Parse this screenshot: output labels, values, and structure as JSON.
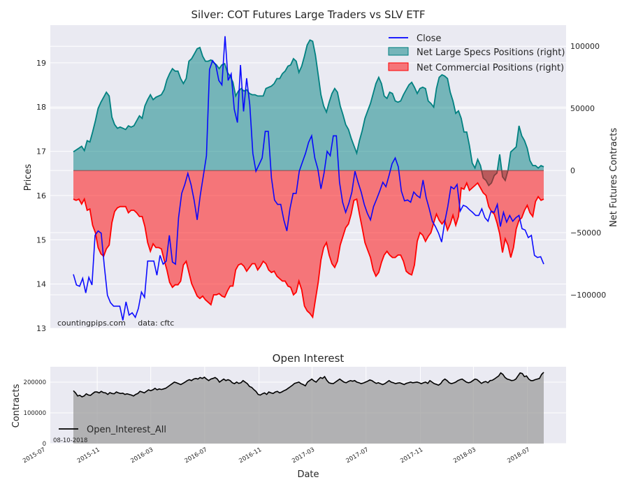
{
  "chart_data": [
    {
      "type": "line",
      "title": "Silver: COT Futures Large Traders vs SLV ETF",
      "ylabel": "Prices",
      "y2label": "Net Futures Contracts",
      "ylim": [
        13,
        19.85
      ],
      "y2lim": [
        -127000,
        117000
      ],
      "yticks": [
        13,
        14,
        15,
        16,
        17,
        18,
        19
      ],
      "y2ticks": [
        -100000,
        -50000,
        0,
        50000,
        100000
      ],
      "y2ticklabels": [
        "−100000",
        "−50000",
        "0",
        "50000",
        "100000"
      ],
      "grid": true,
      "legend": "top-right",
      "annotation": "countingpips.com     data: cftc",
      "series": [
        {
          "name": "Close",
          "axis": "left",
          "color": "#0000ff",
          "x": [
            "2015-09-08",
            "2015-09-15",
            "2015-09-22",
            "2015-09-29",
            "2015-10-06",
            "2015-10-13",
            "2015-10-20",
            "2015-10-27",
            "2015-11-03",
            "2015-11-10",
            "2015-11-17",
            "2015-11-24",
            "2015-12-01",
            "2015-12-08",
            "2015-12-15",
            "2015-12-22",
            "2015-12-29",
            "2016-01-05",
            "2016-01-12",
            "2016-01-19",
            "2016-01-26",
            "2016-02-02",
            "2016-02-09",
            "2016-02-16",
            "2016-02-23",
            "2016-03-01",
            "2016-03-08",
            "2016-03-15",
            "2016-03-22",
            "2016-03-29",
            "2016-04-05",
            "2016-04-12",
            "2016-04-19",
            "2016-04-26",
            "2016-05-03",
            "2016-05-10",
            "2016-05-17",
            "2016-05-24",
            "2016-05-31",
            "2016-06-07",
            "2016-06-14",
            "2016-06-21",
            "2016-06-28",
            "2016-07-05",
            "2016-07-12",
            "2016-07-19",
            "2016-07-26",
            "2016-08-02",
            "2016-08-09",
            "2016-08-16",
            "2016-08-23",
            "2016-08-30",
            "2016-09-06",
            "2016-09-13",
            "2016-09-20",
            "2016-09-27",
            "2016-10-04",
            "2016-10-11",
            "2016-10-18",
            "2016-10-25",
            "2016-11-01",
            "2016-11-08",
            "2016-11-15",
            "2016-11-22",
            "2016-11-29",
            "2016-12-06",
            "2016-12-13",
            "2016-12-20",
            "2016-12-27",
            "2017-01-03",
            "2017-01-10",
            "2017-01-17",
            "2017-01-24",
            "2017-01-31",
            "2017-02-07",
            "2017-02-14",
            "2017-02-21",
            "2017-02-28",
            "2017-03-07",
            "2017-03-14",
            "2017-03-21",
            "2017-03-28",
            "2017-04-04",
            "2017-04-11",
            "2017-04-18",
            "2017-04-25",
            "2017-05-02",
            "2017-05-09",
            "2017-05-16",
            "2017-05-23",
            "2017-05-30",
            "2017-06-06",
            "2017-06-13",
            "2017-06-20",
            "2017-06-27",
            "2017-07-04",
            "2017-07-11",
            "2017-07-18",
            "2017-07-25",
            "2017-08-01",
            "2017-08-08",
            "2017-08-15",
            "2017-08-22",
            "2017-08-29",
            "2017-09-05",
            "2017-09-12",
            "2017-09-19",
            "2017-09-26",
            "2017-10-03",
            "2017-10-10",
            "2017-10-17",
            "2017-10-24",
            "2017-10-31",
            "2017-11-07",
            "2017-11-14",
            "2017-11-21",
            "2017-11-28",
            "2017-12-05",
            "2017-12-12",
            "2017-12-19",
            "2017-12-26",
            "2018-01-02",
            "2018-01-09",
            "2018-01-16",
            "2018-01-23",
            "2018-01-30",
            "2018-02-06",
            "2018-02-13",
            "2018-02-20",
            "2018-02-27",
            "2018-03-06",
            "2018-03-13",
            "2018-03-20",
            "2018-03-27",
            "2018-04-03",
            "2018-04-10",
            "2018-04-17",
            "2018-04-24",
            "2018-05-01",
            "2018-05-08",
            "2018-05-15",
            "2018-05-22",
            "2018-05-29",
            "2018-06-05",
            "2018-06-12",
            "2018-06-19",
            "2018-06-26",
            "2018-07-03",
            "2018-07-10",
            "2018-07-17",
            "2018-07-24",
            "2018-07-31",
            "2018-08-07"
          ],
          "values": [
            14.22,
            13.98,
            13.95,
            14.13,
            13.8,
            14.15,
            13.98,
            15.1,
            15.2,
            15.15,
            14.4,
            13.75,
            13.58,
            13.5,
            13.5,
            13.5,
            13.18,
            13.6,
            13.3,
            13.35,
            13.25,
            13.45,
            13.82,
            13.7,
            14.52,
            14.52,
            14.52,
            14.2,
            14.65,
            14.45,
            14.52,
            15.1,
            14.5,
            14.45,
            15.5,
            16.05,
            16.25,
            16.5,
            16.25,
            15.9,
            15.45,
            16.0,
            16.45,
            16.9,
            18.85,
            19.05,
            18.95,
            18.6,
            18.5,
            19.6,
            18.6,
            18.75,
            17.95,
            17.65,
            18.95,
            17.9,
            18.65,
            18.05,
            16.95,
            16.55,
            16.7,
            16.85,
            17.45,
            17.45,
            16.4,
            15.9,
            15.8,
            15.8,
            15.45,
            15.2,
            15.7,
            16.05,
            16.05,
            16.55,
            16.75,
            16.95,
            17.2,
            17.35,
            16.85,
            16.6,
            16.15,
            16.5,
            17.0,
            16.9,
            17.35,
            17.35,
            16.3,
            15.85,
            15.62,
            15.82,
            16.08,
            16.55,
            16.3,
            16.08,
            15.8,
            15.6,
            15.45,
            15.75,
            15.92,
            16.1,
            16.3,
            16.2,
            16.45,
            16.72,
            16.85,
            16.65,
            16.1,
            15.88,
            15.9,
            15.85,
            16.08,
            16.0,
            15.95,
            16.35,
            15.95,
            15.7,
            15.42,
            15.3,
            15.15,
            14.95,
            15.4,
            15.75,
            16.2,
            16.15,
            16.25,
            15.65,
            15.78,
            15.75,
            15.68,
            15.62,
            15.55,
            15.55,
            15.7,
            15.5,
            15.42,
            15.65,
            15.62,
            15.8,
            15.3,
            15.62,
            15.4,
            15.55,
            15.42,
            15.5,
            15.55,
            15.25,
            15.22,
            15.05,
            15.1,
            14.65,
            14.6,
            14.62,
            14.45
          ]
        },
        {
          "name": "Net Large Specs Positions (right)",
          "axis": "right",
          "color": "#008080",
          "values": [
            15000,
            16500,
            18000,
            19500,
            16000,
            24000,
            23000,
            31000,
            40000,
            50000,
            55000,
            59000,
            63000,
            60000,
            43000,
            37000,
            34000,
            35000,
            34000,
            33000,
            36000,
            35000,
            36000,
            40000,
            44000,
            42000,
            52000,
            57000,
            61000,
            57000,
            59000,
            60000,
            61000,
            65000,
            73000,
            78000,
            82000,
            80000,
            80000,
            74000,
            70000,
            74000,
            88000,
            90000,
            94000,
            98000,
            99000,
            92000,
            88000,
            88000,
            89000,
            87000,
            85000,
            82000,
            85000,
            86000,
            79000,
            76000,
            71000,
            60000,
            64000,
            66000,
            64000,
            65000,
            62000,
            61000,
            61000,
            60000,
            60000,
            60000,
            66000,
            67000,
            68000,
            70000,
            74000,
            74000,
            78000,
            80000,
            84000,
            85000,
            90000,
            88000,
            79000,
            84000,
            92000,
            101000,
            105000,
            104000,
            93000,
            77000,
            61000,
            52000,
            47000,
            55000,
            62000,
            66000,
            63000,
            52000,
            45000,
            37000,
            33000,
            26000,
            20000,
            14000,
            24000,
            32000,
            42000,
            48000,
            54000,
            62000,
            70000,
            75000,
            70000,
            60000,
            58000,
            63000,
            62000,
            56000,
            55000,
            56000,
            61000,
            65000,
            69000,
            71000,
            67000,
            62000,
            66000,
            67000,
            66000,
            56000,
            54000,
            51000,
            66000,
            75000,
            77000,
            76000,
            74000,
            63000,
            56000,
            46000,
            48000,
            42000,
            31000,
            31000,
            20000,
            6000,
            2000,
            9000,
            4000,
            -6000,
            -8000,
            -12000,
            -10000,
            -4000,
            -2000,
            13000,
            -5000,
            -8000,
            0,
            15000,
            17000,
            19000,
            36000,
            28000,
            24000,
            18000,
            8000,
            4000,
            4000,
            2000,
            4000,
            3000
          ]
        },
        {
          "name": "Net Commercial Positions (right)",
          "axis": "right",
          "color": "#ff0000",
          "values": [
            -23000,
            -24000,
            -23000,
            -27000,
            -23000,
            -32000,
            -31000,
            -44000,
            -50000,
            -62000,
            -67000,
            -69000,
            -63000,
            -60000,
            -42000,
            -33000,
            -30000,
            -29000,
            -29000,
            -29000,
            -34000,
            -32000,
            -32000,
            -34000,
            -37000,
            -37000,
            -45000,
            -58000,
            -65000,
            -59000,
            -62000,
            -62000,
            -63000,
            -72000,
            -80000,
            -90000,
            -94000,
            -92000,
            -92000,
            -89000,
            -76000,
            -73000,
            -82000,
            -91000,
            -96000,
            -101000,
            -103000,
            -101000,
            -104000,
            -106000,
            -108000,
            -100000,
            -100000,
            -99000,
            -101000,
            -102000,
            -97000,
            -93000,
            -93000,
            -80000,
            -76000,
            -75000,
            -77000,
            -81000,
            -78000,
            -75000,
            -75000,
            -80000,
            -77000,
            -73000,
            -75000,
            -80000,
            -82000,
            -81000,
            -85000,
            -87000,
            -89000,
            -89000,
            -93000,
            -94000,
            -100000,
            -98000,
            -89000,
            -96000,
            -109000,
            -113000,
            -115000,
            -118000,
            -104000,
            -90000,
            -72000,
            -62000,
            -58000,
            -68000,
            -75000,
            -78000,
            -73000,
            -60000,
            -53000,
            -46000,
            -43000,
            -35000,
            -24000,
            -23000,
            -35000,
            -46000,
            -58000,
            -64000,
            -70000,
            -80000,
            -85000,
            -82000,
            -74000,
            -68000,
            -65000,
            -68000,
            -70000,
            -70000,
            -68000,
            -68000,
            -73000,
            -81000,
            -83000,
            -84000,
            -76000,
            -57000,
            -50000,
            -52000,
            -57000,
            -53000,
            -50000,
            -42000,
            -35000,
            -40000,
            -43000,
            -40000,
            -48000,
            -43000,
            -36000,
            -44000,
            -37000,
            -14000,
            -15000,
            -10000,
            -16000,
            -14000,
            -12000,
            -10000,
            -14000,
            -18000,
            -20000,
            -29000,
            -33000,
            -35000,
            -42000,
            -51000,
            -66000,
            -55000,
            -60000,
            -70000,
            -62000,
            -47000,
            -40000,
            -38000,
            -32000,
            -28000,
            -34000,
            -37000,
            -25000,
            -21000,
            -24000,
            -23000
          ]
        }
      ]
    },
    {
      "type": "area",
      "title": "Open Interest",
      "xlabel": "Date",
      "ylabel": "Contracts",
      "ylim": [
        0,
        250000
      ],
      "yticks": [
        0,
        100000,
        200000
      ],
      "xticklabels": [
        "2015-07",
        "2015-11",
        "2016-03",
        "2016-07",
        "2016-11",
        "2017-03",
        "2017-07",
        "2017-11",
        "2018-03",
        "2018-07"
      ],
      "legend": "bottom-left",
      "annotation": "08-10-2018",
      "series": [
        {
          "name": "Open_Interest_All",
          "color": "#000000",
          "values": [
            172000,
            165000,
            155000,
            157000,
            152000,
            155000,
            162000,
            158000,
            157000,
            163000,
            168000,
            168000,
            165000,
            170000,
            166000,
            165000,
            160000,
            166000,
            163000,
            162000,
            168000,
            165000,
            163000,
            164000,
            160000,
            162000,
            160000,
            158000,
            155000,
            160000,
            163000,
            170000,
            168000,
            165000,
            170000,
            175000,
            172000,
            175000,
            180000,
            175000,
            178000,
            176000,
            178000,
            180000,
            185000,
            190000,
            195000,
            200000,
            198000,
            195000,
            192000,
            196000,
            200000,
            205000,
            208000,
            205000,
            210000,
            212000,
            210000,
            215000,
            212000,
            216000,
            210000,
            205000,
            210000,
            212000,
            215000,
            210000,
            200000,
            205000,
            210000,
            205000,
            208000,
            205000,
            198000,
            195000,
            200000,
            196000,
            198000,
            205000,
            200000,
            195000,
            186000,
            183000,
            176000,
            170000,
            160000,
            158000,
            162000,
            165000,
            160000,
            168000,
            165000,
            163000,
            168000,
            170000,
            165000,
            168000,
            172000,
            175000,
            180000,
            185000,
            190000,
            196000,
            198000,
            200000,
            195000,
            192000,
            188000,
            200000,
            205000,
            210000,
            204000,
            200000,
            208000,
            215000,
            212000,
            218000,
            206000,
            198000,
            196000,
            195000,
            200000,
            205000,
            210000,
            205000,
            200000,
            198000,
            202000,
            205000,
            203000,
            205000,
            200000,
            198000,
            195000,
            197000,
            200000,
            203000,
            207000,
            205000,
            200000,
            196000,
            198000,
            195000,
            192000,
            195000,
            200000,
            205000,
            200000,
            198000,
            195000,
            197000,
            198000,
            195000,
            192000,
            196000,
            198000,
            200000,
            198000,
            199000,
            200000,
            198000,
            195000,
            198000,
            200000,
            196000,
            205000,
            200000,
            195000,
            193000,
            190000,
            195000,
            205000,
            210000,
            205000,
            198000,
            195000,
            197000,
            200000,
            205000,
            208000,
            210000,
            205000,
            200000,
            198000,
            200000,
            205000,
            210000,
            208000,
            202000,
            196000,
            200000,
            202000,
            198000,
            205000,
            206000,
            210000,
            215000,
            220000,
            230000,
            225000,
            215000,
            210000,
            208000,
            205000,
            206000,
            210000,
            220000,
            230000,
            228000,
            218000,
            220000,
            210000,
            205000,
            205000,
            208000,
            210000,
            212000,
            225000,
            232000
          ]
        }
      ]
    }
  ]
}
